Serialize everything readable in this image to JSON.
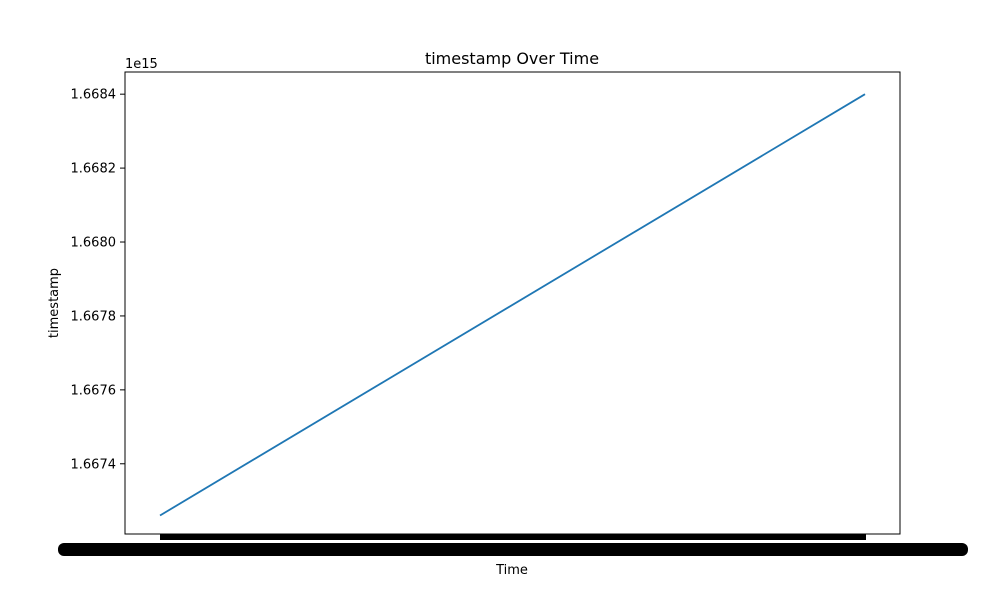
{
  "chart_data": {
    "type": "line",
    "title": "timestamp Over Time",
    "xlabel": "Time",
    "ylabel": "timestamp",
    "offset_text": "1e15",
    "y_ticks": [
      "1.6674",
      "1.6676",
      "1.6678",
      "1.6680",
      "1.6682",
      "1.6684"
    ],
    "ylim": [
      1.66721,
      1.66846
    ],
    "grid": false,
    "series": [
      {
        "color": "#1f77b4",
        "x": [
          0,
          1
        ],
        "values": [
          1.66726,
          1.6684
        ]
      }
    ]
  }
}
